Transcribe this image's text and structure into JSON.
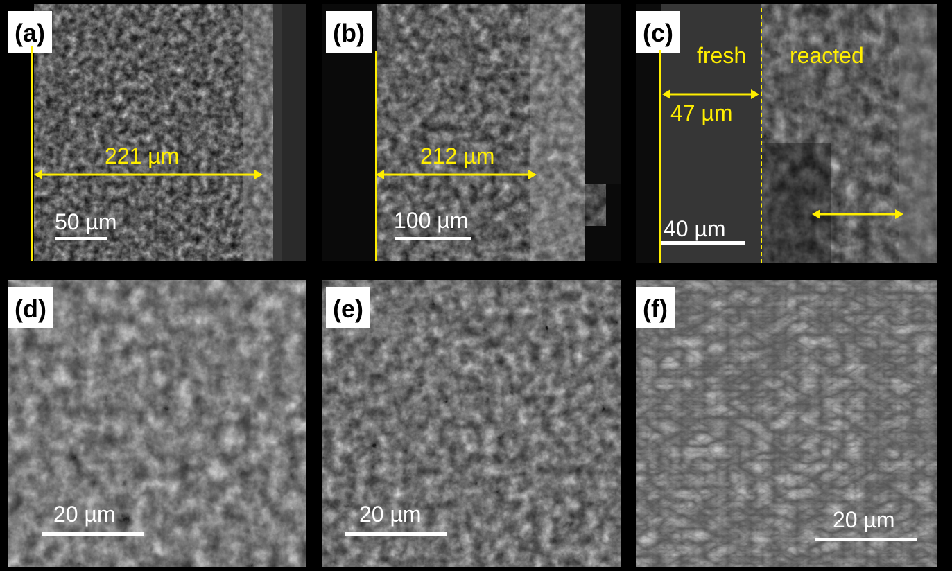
{
  "panels": [
    {
      "id": "a",
      "label": "(a)",
      "measurement": "221 µm",
      "scale_bar": "50 µm"
    },
    {
      "id": "b",
      "label": "(b)",
      "measurement": "212 µm",
      "scale_bar": "100 µm"
    },
    {
      "id": "c",
      "label": "(c)",
      "region_left": "fresh",
      "region_right": "reacted",
      "measurement": "47 µm",
      "scale_bar": "40 µm"
    },
    {
      "id": "d",
      "label": "(d)",
      "scale_bar": "20 µm"
    },
    {
      "id": "e",
      "label": "(e)",
      "scale_bar": "20 µm"
    },
    {
      "id": "f",
      "label": "(f)",
      "scale_bar": "20 µm"
    }
  ],
  "colors": {
    "annotation": "#ffee00",
    "scale": "#ffffff",
    "background": "#000000"
  }
}
